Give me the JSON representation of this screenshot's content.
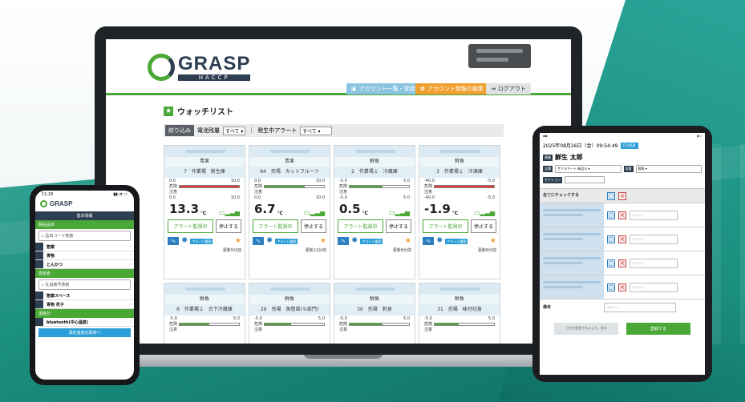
{
  "laptop": {
    "logo_word": "GRASP",
    "logo_sub": "HACCP",
    "nav": {
      "account_list": "アカウント一覧・登録",
      "account_edit": "アカウント情報の編集",
      "logout": "ログアウト"
    },
    "title": "ウォッチリスト",
    "filter": {
      "label": "絞り込み",
      "status_label": "電池残量",
      "status_value": "すべて",
      "alert_label": "発生中アラート",
      "alert_value": "すべて"
    },
    "cards": [
      {
        "category": "青果",
        "location": "7　作業場　新生庫",
        "range_lo": "0.0",
        "range_hi": "10.0",
        "value": "13.3",
        "unit": "℃",
        "level": 1.0,
        "color": "#e03030",
        "alert_btn": "アラート監視中",
        "stop_btn": "停止する",
        "alert_hist": "アラート履歴",
        "updated": "更新5分前"
      },
      {
        "category": "青果",
        "location": "64　売場　カットフルーツ",
        "range_lo": "0.0",
        "range_hi": "10.0",
        "value": "6.7",
        "unit": "℃",
        "level": 0.67,
        "color": "#4aa836",
        "alert_btn": "アラート監視中",
        "stop_btn": "停止する",
        "alert_hist": "アラート履歴",
        "updated": "更新11分前"
      },
      {
        "category": "鮮魚",
        "location": "2　作業場１　冷蔵庫",
        "range_lo": "-5.0",
        "range_hi": "5.0",
        "value": "0.5",
        "unit": "℃",
        "level": 0.55,
        "color": "#4aa836",
        "alert_btn": "アラート監視中",
        "stop_btn": "停止する",
        "alert_hist": "アラート履歴",
        "updated": "更新6分前"
      },
      {
        "category": "鮮魚",
        "location": "3　作業場１　冷凍庫",
        "range_lo": "-40.0",
        "range_hi": "-5.0",
        "value": "-1.9",
        "unit": "℃",
        "level": 1.0,
        "color": "#e03030",
        "alert_btn": "アラート監視中",
        "stop_btn": "停止する",
        "alert_hist": "アラート履歴",
        "updated": "更新6分前"
      },
      {
        "category": "鮮魚",
        "location": "6　作業場２　台下冷蔵庫",
        "range_lo": "-5.0",
        "range_hi": "5.0",
        "value": "",
        "unit": "",
        "level": 0.5,
        "color": "#4aa836"
      },
      {
        "category": "鮮魚",
        "location": "29　売場　魚惣菜(９部門)",
        "range_lo": "-5.0",
        "range_hi": "5.0",
        "value": "",
        "unit": "",
        "level": 0.45,
        "color": "#4aa836"
      },
      {
        "category": "鮮魚",
        "location": "30　売場　刺身",
        "range_lo": "-5.0",
        "range_hi": "5.0",
        "value": "",
        "unit": "",
        "level": 0.55,
        "color": "#4aa836"
      },
      {
        "category": "鮮魚",
        "location": "31　売場　味付切身",
        "range_lo": "-5.0",
        "range_hi": "5.0",
        "value": "",
        "unit": "",
        "level": 0.4,
        "color": "#4aa836"
      }
    ],
    "danger_label": "危険",
    "caution_label": "注意"
  },
  "phone": {
    "time": "11:20",
    "logo": "GRASP",
    "header": "基本情報",
    "sec1": "製品品目",
    "search1": "品目コード検索",
    "items": [
      "惣菜",
      "青物",
      "とんかつ"
    ],
    "sec2": "測定者",
    "search2": "社員番号検索",
    "people": [
      "惣菜スペース",
      "青物 花子"
    ],
    "sec3": "温度計",
    "device": "bluetooth(中心温度)",
    "button": "測定温度の取得へ"
  },
  "tablet": {
    "datetime": "2025年08月26日（金）09:54:49",
    "badge": "日付変更",
    "name_label": "氏名",
    "user": "鮮生 太郎",
    "store_label": "店舗",
    "store": "サクラマート 新品川",
    "dept_label": "部署",
    "dept": "鮮魚",
    "section_label": "セクション",
    "check_all": "全てにチェックする",
    "comment_ph": "コメント",
    "memo_label": "備考",
    "btn_save_draft": "日付が変更されました。戻る",
    "btn_submit": "登録する"
  }
}
